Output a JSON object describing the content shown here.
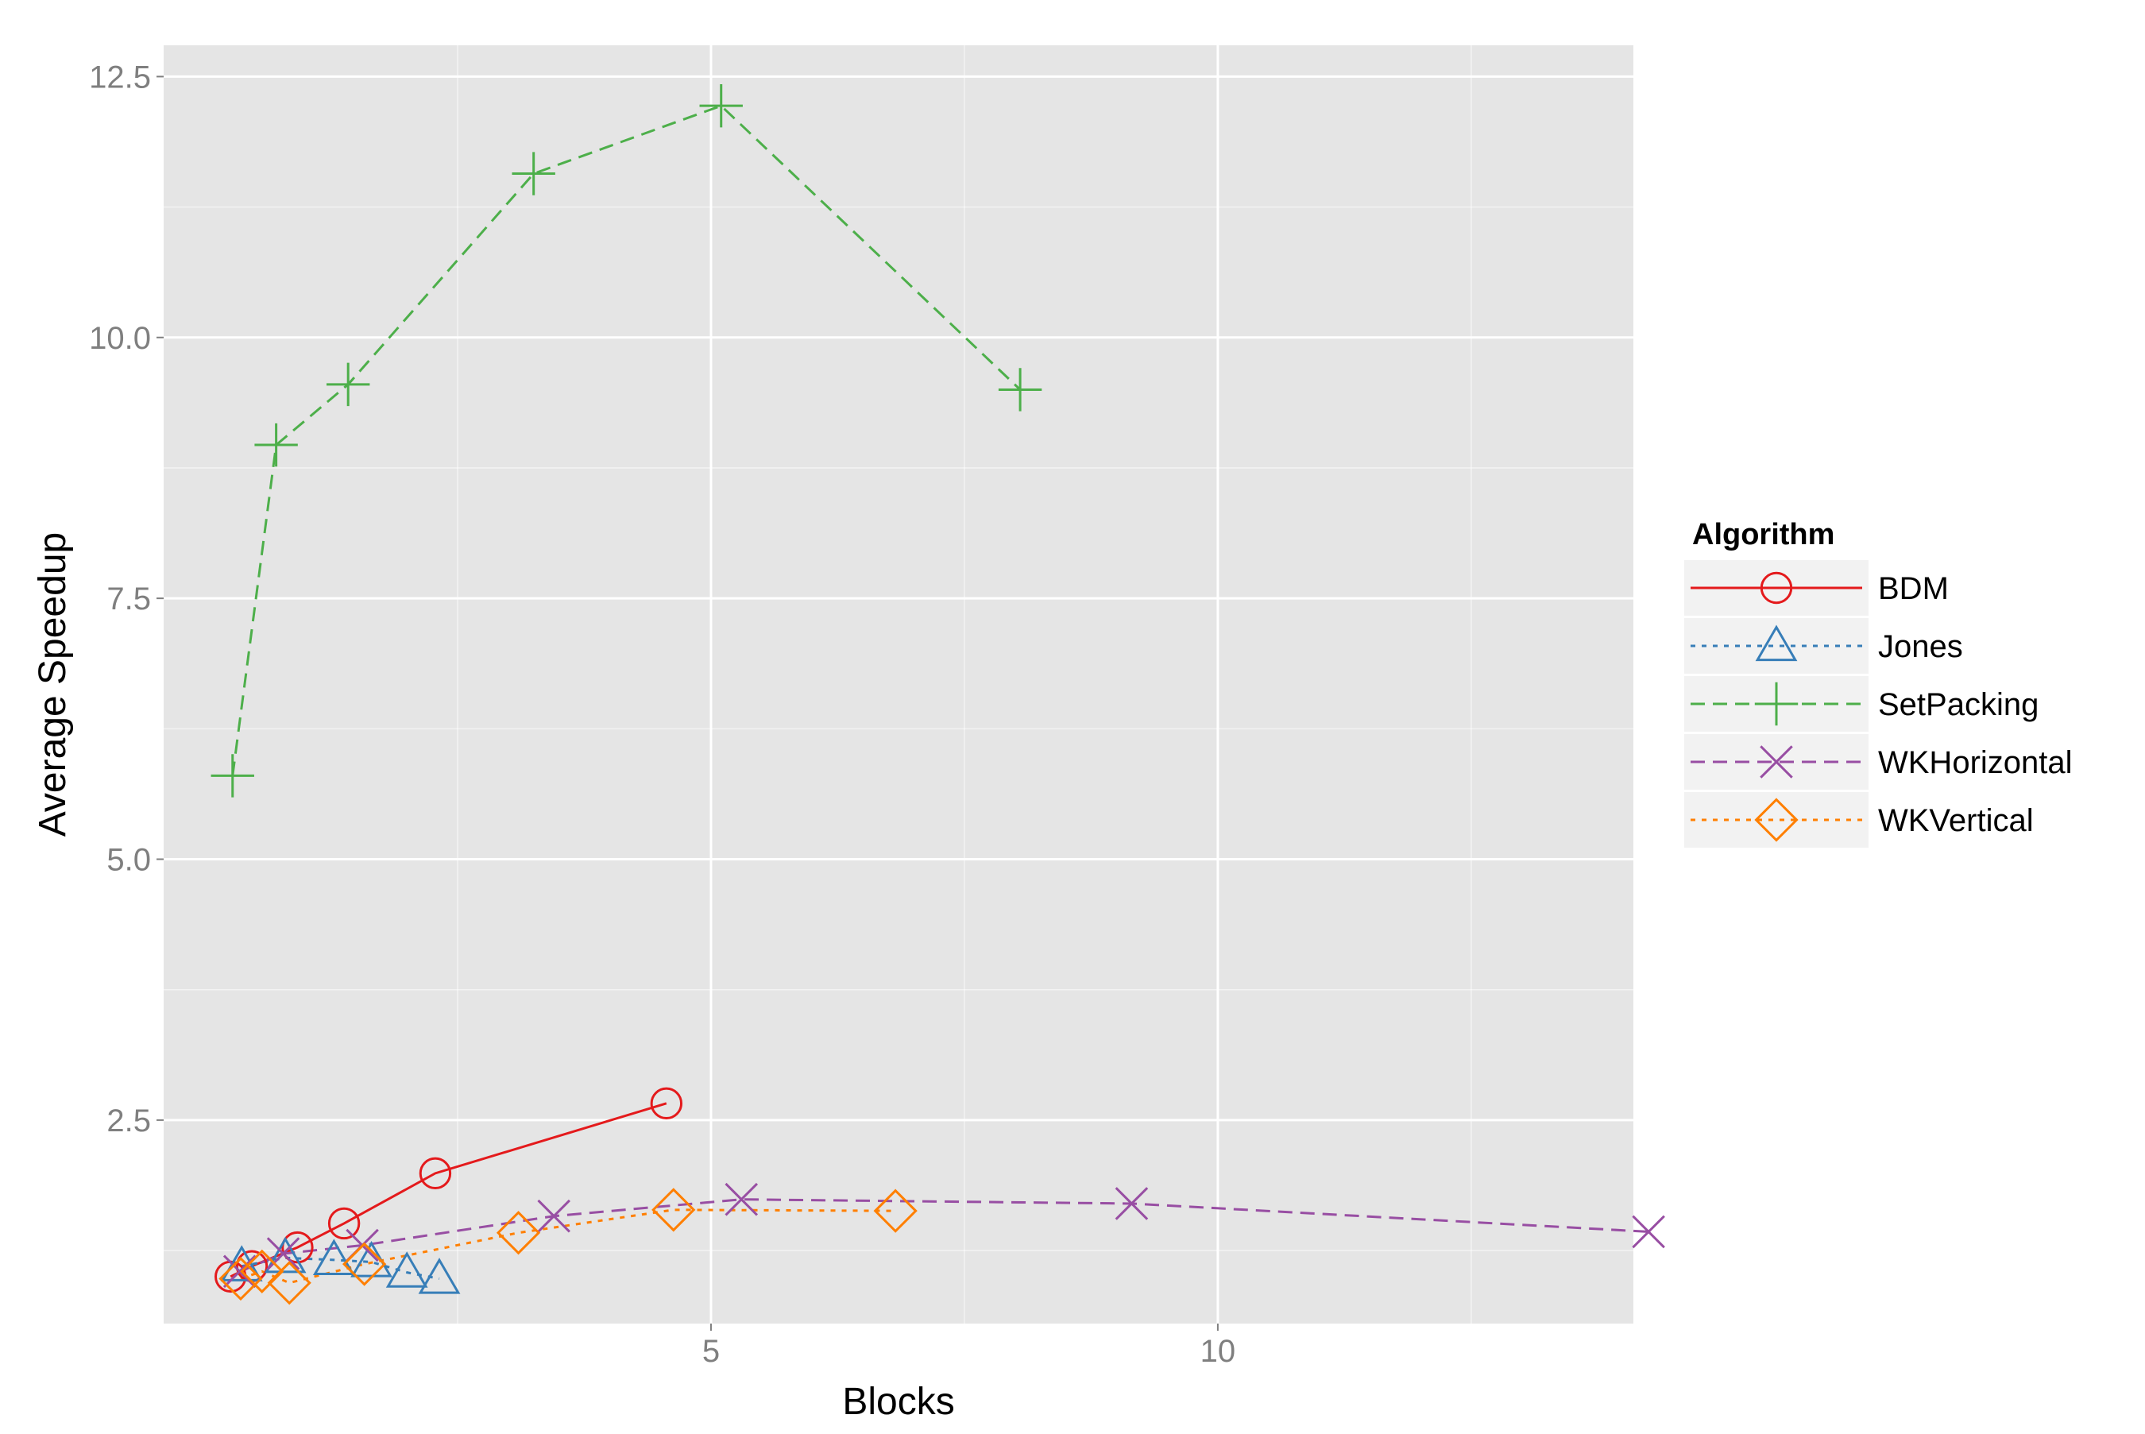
{
  "chart_data": {
    "type": "line",
    "xlabel": "Blocks",
    "ylabel": "Average Speedup",
    "xlim": [
      -0.4,
      14.1
    ],
    "ylim": [
      0.55,
      12.8
    ],
    "x_ticks": [
      {
        "value": 5,
        "label": "5"
      },
      {
        "value": 10,
        "label": "10"
      }
    ],
    "x_minor_ticks": [
      2.5,
      7.5,
      12.5
    ],
    "y_ticks": [
      {
        "value": 2.5,
        "label": "2.5"
      },
      {
        "value": 5.0,
        "label": "5.0"
      },
      {
        "value": 7.5,
        "label": "7.5"
      },
      {
        "value": 10.0,
        "label": "10.0"
      },
      {
        "value": 12.5,
        "label": "12.5"
      }
    ],
    "y_minor_ticks": [
      1.25,
      3.75,
      6.25,
      8.75,
      11.25
    ],
    "grid": true,
    "panel_background": "#e5e5e5",
    "grid_color": "#ffffff",
    "legend": {
      "title": "Algorithm",
      "placement": "right"
    },
    "series": [
      {
        "name": "BDM",
        "color": "#e41a1c",
        "line": "solid",
        "marker": "circle",
        "x": [
          0.26,
          0.47,
          0.92,
          1.38,
          2.28,
          4.56
        ],
        "y": [
          1.0,
          1.1,
          1.28,
          1.51,
          1.99,
          2.66
        ]
      },
      {
        "name": "Jones",
        "color": "#377eb8",
        "line": "dotted",
        "marker": "triangle",
        "x": [
          0.37,
          0.8,
          1.28,
          1.65,
          2.0,
          2.32
        ],
        "y": [
          1.1,
          1.18,
          1.16,
          1.14,
          1.04,
          0.98
        ]
      },
      {
        "name": "SetPacking",
        "color": "#4daf4a",
        "line": "dashed",
        "marker": "plus",
        "x": [
          0.28,
          0.71,
          1.42,
          3.25,
          5.1,
          8.05
        ],
        "y": [
          5.8,
          8.97,
          9.55,
          11.57,
          12.22,
          9.5
        ]
      },
      {
        "name": "WKHorizontal",
        "color": "#984ea3",
        "line": "dashed",
        "marker": "x",
        "x": [
          0.35,
          0.78,
          1.56,
          3.45,
          5.3,
          9.15,
          14.25
        ],
        "y": [
          1.05,
          1.22,
          1.3,
          1.58,
          1.74,
          1.7,
          1.43
        ]
      },
      {
        "name": "WKVertical",
        "color": "#ff7f00",
        "line": "dotted",
        "marker": "diamond",
        "x": [
          0.36,
          0.57,
          0.84,
          1.58,
          3.1,
          4.63,
          6.82
        ],
        "y": [
          0.98,
          1.05,
          0.94,
          1.12,
          1.42,
          1.64,
          1.63
        ]
      }
    ]
  }
}
